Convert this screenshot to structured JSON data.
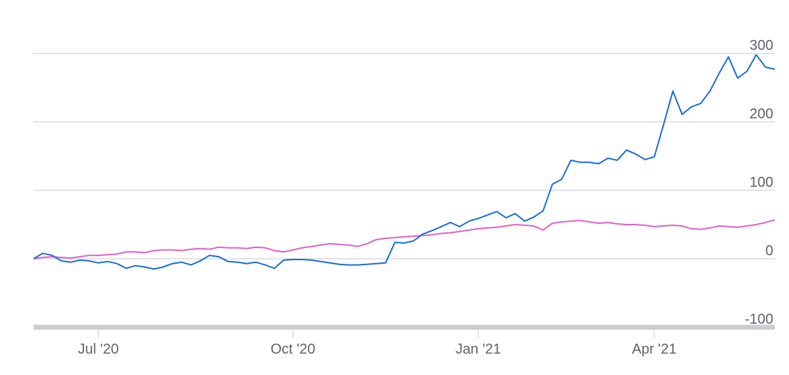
{
  "chart_data": {
    "type": "line",
    "categories": [
      null,
      null,
      null,
      null,
      null,
      null,
      null,
      "Jul '20",
      null,
      null,
      null,
      null,
      null,
      null,
      null,
      null,
      null,
      null,
      null,
      null,
      null,
      null,
      null,
      null,
      null,
      null,
      null,
      null,
      "Oct '20",
      null,
      null,
      null,
      null,
      null,
      null,
      null,
      null,
      null,
      null,
      null,
      null,
      null,
      null,
      null,
      null,
      null,
      null,
      null,
      "Jan '21",
      null,
      null,
      null,
      null,
      null,
      null,
      null,
      null,
      null,
      null,
      null,
      null,
      null,
      null,
      null,
      null,
      null,
      null,
      "Apr '21",
      null,
      null,
      null,
      null,
      null,
      null,
      null,
      null,
      null,
      null,
      null,
      null,
      null
    ],
    "series": [
      {
        "color": "#1a6fd6",
        "values": [
          0,
          8,
          5,
          -3,
          -5,
          -2,
          -3,
          -6,
          -4,
          -7,
          -14,
          -10,
          -12,
          -15,
          -12,
          -7,
          -5,
          -9,
          -3,
          5,
          3,
          -4,
          -5,
          -7,
          -5,
          -9,
          -14,
          -2,
          -1,
          -1,
          -2,
          -4,
          -6,
          -8,
          -9,
          -9,
          -8,
          -7,
          -6,
          24,
          23,
          26,
          36,
          41,
          47,
          53,
          47,
          55,
          59,
          64,
          69,
          60,
          66,
          55,
          61,
          70,
          109,
          116,
          144,
          141,
          141,
          139,
          147,
          144,
          159,
          153,
          145,
          149,
          196,
          245,
          211,
          222,
          227,
          245,
          271,
          295,
          264,
          274,
          298,
          280,
          277
        ]
      },
      {
        "color": "#e062c6",
        "values": [
          0,
          2,
          3,
          2,
          1,
          3,
          5,
          5,
          6,
          7,
          10,
          10,
          9,
          12,
          13,
          13,
          12,
          14,
          15,
          14,
          17,
          16,
          16,
          15,
          17,
          16,
          12,
          10,
          13,
          16,
          18,
          20,
          22,
          21,
          20,
          18,
          22,
          28,
          30,
          31,
          32,
          33,
          34,
          35,
          37,
          38,
          40,
          42,
          44,
          45,
          46,
          48,
          50,
          49,
          48,
          42,
          52,
          54,
          55,
          56,
          54,
          52,
          53,
          51,
          50,
          50,
          49,
          47,
          48,
          49,
          48,
          44,
          43,
          45,
          48,
          47,
          46,
          48,
          50,
          53,
          57
        ]
      }
    ],
    "ylim": [
      -100,
      300
    ],
    "yticks": [
      -100,
      0,
      100,
      200,
      300
    ],
    "grid": true
  }
}
